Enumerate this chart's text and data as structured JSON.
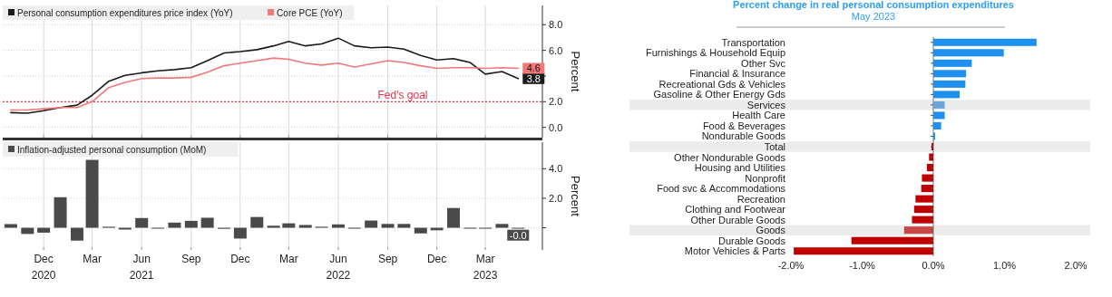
{
  "chart_data": [
    {
      "type": "line",
      "legend": "top left",
      "grid": true,
      "tick_labels": "y",
      "ylabel": "Percent",
      "x": [
        "2020-10",
        "2020-11",
        "2020-12",
        "2021-01",
        "2021-02",
        "2021-03",
        "2021-04",
        "2021-05",
        "2021-06",
        "2021-07",
        "2021-08",
        "2021-09",
        "2021-10",
        "2021-11",
        "2021-12",
        "2022-01",
        "2022-02",
        "2022-03",
        "2022-04",
        "2022-05",
        "2022-06",
        "2022-07",
        "2022-08",
        "2022-09",
        "2022-10",
        "2022-11",
        "2022-12",
        "2023-01",
        "2023-02",
        "2023-03",
        "2023-04",
        "2023-05"
      ],
      "xlim": [
        "2020-09-16",
        "2023-06-15"
      ],
      "xticks": [
        {
          "value": "2020-12",
          "label": null
        },
        {
          "value": "2021-03",
          "label": null
        },
        {
          "value": "2021-06",
          "label": null
        },
        {
          "value": "2021-09",
          "label": null
        },
        {
          "value": "2021-12",
          "label": null
        },
        {
          "value": "2022-03",
          "label": null
        },
        {
          "value": "2022-06",
          "label": null
        },
        {
          "value": "2022-09",
          "label": null
        },
        {
          "value": "2022-12",
          "label": null
        },
        {
          "value": "2023-03",
          "label": null
        }
      ],
      "ylim": [
        -0.8,
        9.5
      ],
      "yticks": [
        {
          "value": 0,
          "label": "0.0"
        },
        {
          "value": 2,
          "label": "2.0"
        },
        {
          "value": 4,
          "label": null
        },
        {
          "value": 6,
          "label": "6.0"
        },
        {
          "value": 8,
          "label": "8.0"
        }
      ],
      "ref_lines": [
        {
          "axis": "y",
          "value": 2,
          "label": "Fed's goal",
          "color": "#e8304a",
          "line_style": "dotted"
        }
      ],
      "series": [
        {
          "name": "Personal consumption expenditures price index (YoY)",
          "color": "#1a1a1a",
          "values": [
            1.15,
            1.1,
            1.3,
            1.55,
            1.73,
            2.5,
            3.6,
            4.05,
            4.25,
            4.4,
            4.5,
            4.65,
            5.2,
            5.8,
            5.9,
            6.05,
            6.35,
            6.7,
            6.35,
            6.5,
            6.95,
            6.35,
            6.2,
            6.25,
            6.1,
            5.6,
            5.25,
            5.35,
            5.05,
            4.15,
            4.35,
            3.8
          ],
          "value_labels": [
            null,
            null,
            null,
            null,
            null,
            null,
            null,
            null,
            null,
            null,
            null,
            null,
            null,
            null,
            null,
            null,
            null,
            null,
            null,
            null,
            null,
            null,
            null,
            null,
            null,
            null,
            null,
            null,
            null,
            null,
            null,
            "3.8"
          ]
        },
        {
          "name": "Core PCE (YoY)",
          "color": "#f07878",
          "values": [
            1.35,
            1.35,
            1.45,
            1.55,
            1.55,
            2.0,
            3.1,
            3.5,
            3.8,
            3.85,
            3.85,
            3.9,
            4.3,
            4.8,
            5.0,
            5.2,
            5.4,
            5.3,
            5.0,
            4.85,
            5.0,
            4.7,
            4.95,
            5.2,
            5.05,
            4.8,
            4.6,
            4.65,
            4.65,
            4.6,
            4.65,
            4.6
          ],
          "value_labels": [
            null,
            null,
            null,
            null,
            null,
            null,
            null,
            null,
            null,
            null,
            null,
            null,
            null,
            null,
            null,
            null,
            null,
            null,
            null,
            null,
            null,
            null,
            null,
            null,
            null,
            null,
            null,
            null,
            null,
            null,
            null,
            "4.6"
          ]
        }
      ]
    },
    {
      "type": "bar",
      "legend": "top left",
      "grid": true,
      "ylabel": "Percent",
      "x": [
        "2020-10",
        "2020-11",
        "2020-12",
        "2021-01",
        "2021-02",
        "2021-03",
        "2021-04",
        "2021-05",
        "2021-06",
        "2021-07",
        "2021-08",
        "2021-09",
        "2021-10",
        "2021-11",
        "2021-12",
        "2022-01",
        "2022-02",
        "2022-03",
        "2022-04",
        "2022-05",
        "2022-06",
        "2022-07",
        "2022-08",
        "2022-09",
        "2022-10",
        "2022-11",
        "2022-12",
        "2023-01",
        "2023-02",
        "2023-03",
        "2023-04",
        "2023-05"
      ],
      "xlim": [
        "2020-09-16",
        "2023-06-15"
      ],
      "xticks": [
        {
          "value": "2020-12",
          "label": "Dec\n2020"
        },
        {
          "value": "2021-03",
          "label": "Mar"
        },
        {
          "value": "2021-06",
          "label": "Jun\n2021"
        },
        {
          "value": "2021-09",
          "label": "Sep"
        },
        {
          "value": "2021-12",
          "label": "Dec"
        },
        {
          "value": "2022-03",
          "label": "Mar"
        },
        {
          "value": "2022-06",
          "label": "Jun\n2022"
        },
        {
          "value": "2022-09",
          "label": "Sep"
        },
        {
          "value": "2022-12",
          "label": "Dec"
        },
        {
          "value": "2023-03",
          "label": "Mar\n2023"
        }
      ],
      "ylim": [
        -1.5,
        5.8
      ],
      "yticks": [
        {
          "value": 0,
          "label": null
        },
        {
          "value": 2,
          "label": "2.0"
        },
        {
          "value": 4,
          "label": "4.0"
        }
      ],
      "series": [
        {
          "name": "Inflation-adjusted personal consumption (MoM)",
          "color": "#4a4a4a",
          "values": [
            0.25,
            -0.42,
            -0.33,
            2.07,
            -0.87,
            4.6,
            0.07,
            -0.12,
            0.66,
            -0.02,
            0.35,
            0.47,
            0.68,
            -0.07,
            -0.73,
            0.73,
            0.14,
            0.3,
            0.19,
            0.07,
            0.23,
            -0.02,
            0.49,
            0.26,
            0.26,
            -0.38,
            -0.17,
            1.34,
            -0.01,
            -0.01,
            0.26,
            -0.01
          ],
          "value_labels": [
            null,
            null,
            null,
            null,
            null,
            null,
            null,
            null,
            null,
            null,
            null,
            null,
            null,
            null,
            null,
            null,
            null,
            null,
            null,
            null,
            null,
            null,
            null,
            null,
            null,
            null,
            null,
            null,
            null,
            null,
            null,
            "-0.0"
          ]
        }
      ]
    },
    {
      "type": "bar",
      "orientation": "horizontal",
      "title": "Percent change in real personal consumption  expenditures",
      "subtitle": "May 2023",
      "categories": [
        "Transportation",
        "Furnishings & Household Equip",
        "Other Svc",
        "Financial & Insurance",
        "Recreational Gds & Vehicles",
        "Gasoline & Other Energy Gds",
        "Services",
        "Health Care",
        "Food & Beverages",
        "Nondurable Goods",
        "Total",
        "Other Nondurable Goods",
        "Housing and Utilities",
        "Nonprofit",
        "Food svc & Accommodations",
        "Recreation",
        "Clothing and Footwear",
        "Other Durable Goods",
        "Goods",
        "Durable Goods",
        "Motor Vehicles & Parts"
      ],
      "values": [
        1.45,
        0.99,
        0.54,
        0.46,
        0.45,
        0.37,
        0.16,
        0.16,
        0.11,
        0.01,
        -0.02,
        -0.06,
        -0.09,
        -0.16,
        -0.17,
        -0.25,
        -0.27,
        -0.3,
        -0.41,
        -1.15,
        -1.96
      ],
      "colors": [
        "#1e90f0",
        "#1e90f0",
        "#1e90f0",
        "#1e90f0",
        "#1e90f0",
        "#1e90f0",
        "#6aa6dc",
        "#1e90f0",
        "#1e90f0",
        "#1e90f0",
        "#c00000",
        "#c00000",
        "#c00000",
        "#c00000",
        "#c00000",
        "#c00000",
        "#c00000",
        "#c00000",
        "#c84848",
        "#c00000",
        "#c00000"
      ],
      "xlim": [
        -2.0,
        2.0
      ],
      "xticks": [
        {
          "value": -2,
          "label": "-2.0%"
        },
        {
          "value": -1,
          "label": "-1.0%"
        },
        {
          "value": 0,
          "label": "0.0%"
        },
        {
          "value": 1,
          "label": "1.0%"
        },
        {
          "value": 2,
          "label": "2.0%"
        }
      ],
      "bands": [
        {
          "axis": "y",
          "from": "Services",
          "to": "Services",
          "color": "#ececec"
        },
        {
          "axis": "y",
          "from": "Total",
          "to": "Total",
          "color": "#ececec"
        },
        {
          "axis": "y",
          "from": "Goods",
          "to": "Goods",
          "color": "#ececec"
        }
      ]
    }
  ]
}
